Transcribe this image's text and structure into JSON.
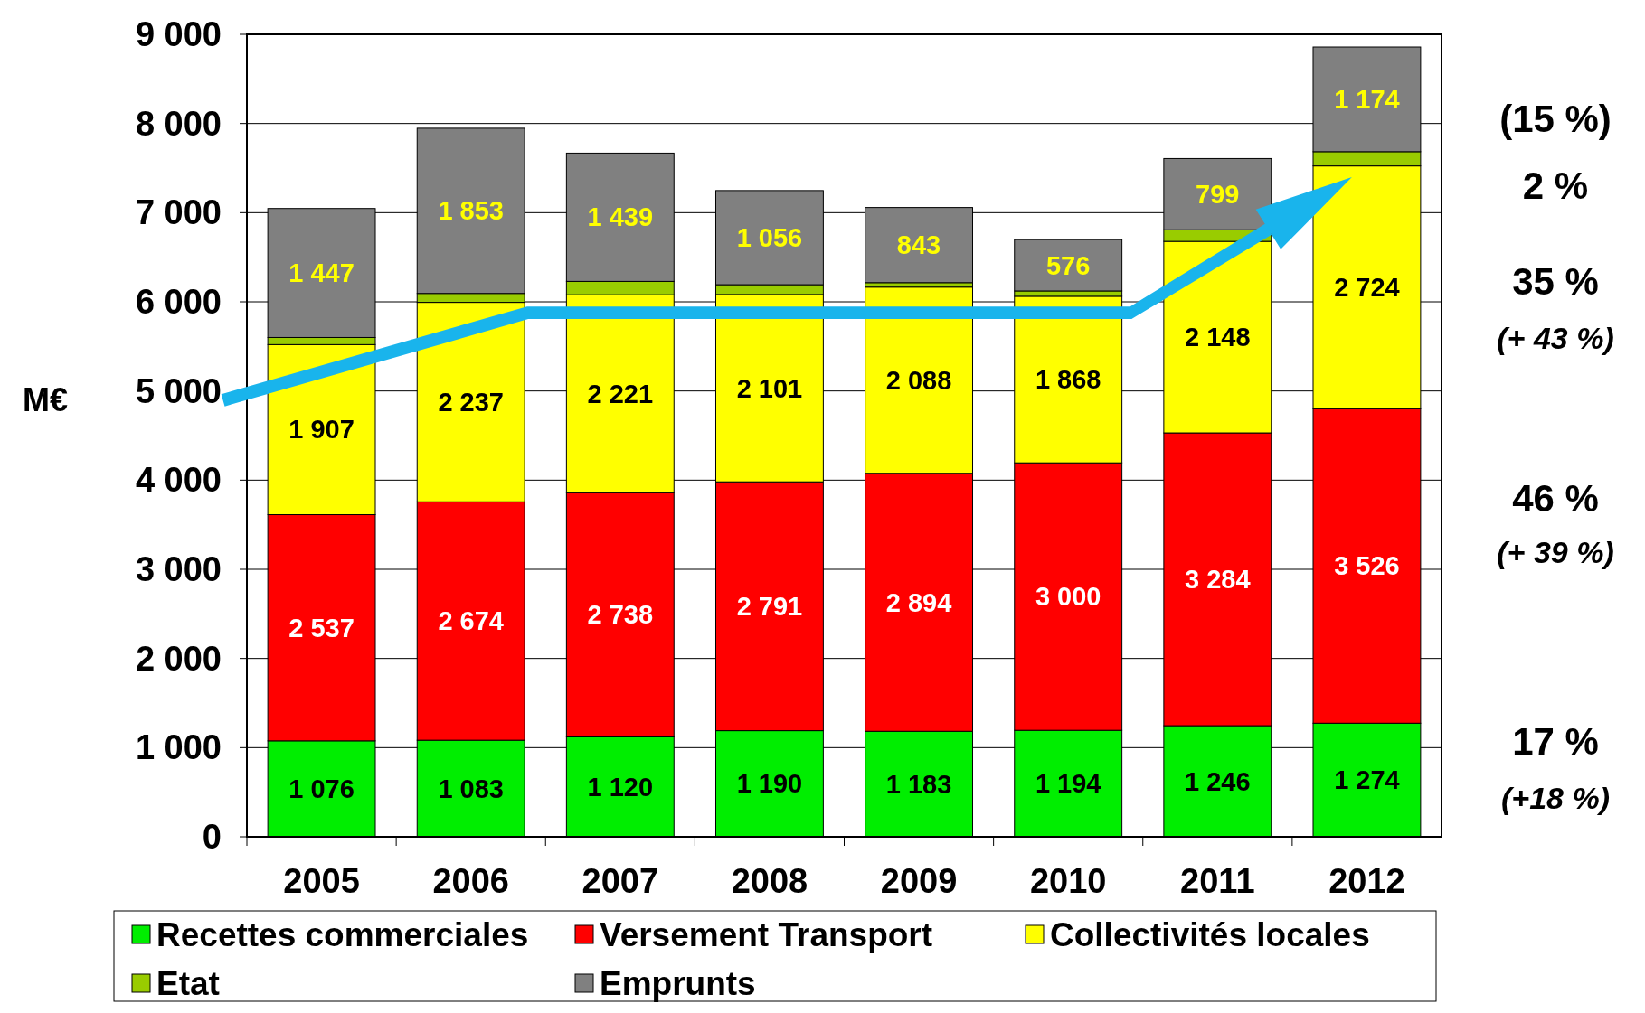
{
  "chart_data": {
    "type": "bar",
    "stacked": true,
    "ylabel": "M€",
    "categories": [
      "2005",
      "2006",
      "2007",
      "2008",
      "2009",
      "2010",
      "2011",
      "2012"
    ],
    "series": [
      {
        "name": "Recettes commerciales",
        "color": "#00ee00",
        "values": [
          1076,
          1083,
          1120,
          1190,
          1183,
          1194,
          1246,
          1274
        ],
        "value_labels": [
          "1 076",
          "1 083",
          "1 120",
          "1 190",
          "1 183",
          "1 194",
          "1 246",
          "1 274"
        ]
      },
      {
        "name": "Versement Transport",
        "color": "#ff0000",
        "values": [
          2537,
          2674,
          2738,
          2791,
          2894,
          3000,
          3284,
          3526
        ],
        "value_labels": [
          "2 537",
          "2 674",
          "2 738",
          "2 791",
          "2 894",
          "3 000",
          "3 284",
          "3 526"
        ]
      },
      {
        "name": "Collectivités locales",
        "color": "#ffff00",
        "values": [
          1907,
          2237,
          2221,
          2101,
          2088,
          1868,
          2148,
          2724
        ],
        "value_labels": [
          "1 907",
          "2 237",
          "2 221",
          "2 101",
          "2 088",
          "1 868",
          "2 148",
          "2 724"
        ]
      },
      {
        "name": "Etat",
        "color": "#99cc00",
        "values": [
          80,
          100,
          150,
          110,
          50,
          60,
          130,
          160
        ]
      },
      {
        "name": "Emprunts",
        "color": "#808080",
        "values": [
          1447,
          1853,
          1439,
          1056,
          843,
          576,
          799,
          1174
        ],
        "value_labels": [
          "1 447",
          "1 853",
          "1 439",
          "1 056",
          "843",
          "576",
          "799",
          "1 174"
        ]
      }
    ],
    "ylim": [
      0,
      9000
    ],
    "yticks": [
      0,
      {
        "value": 1000,
        "label": "1 000"
      },
      {
        "value": 2000,
        "label": "2 000"
      },
      {
        "value": 3000,
        "label": "3 000"
      },
      {
        "value": 4000,
        "label": "4 000"
      },
      {
        "value": 5000,
        "label": "5 000"
      },
      {
        "value": 6000,
        "label": "6 000"
      },
      {
        "value": 7000,
        "label": "7 000"
      },
      {
        "value": 8000,
        "label": "8 000"
      },
      {
        "value": 9000,
        "label": "9 000"
      }
    ],
    "grid": "y",
    "legend": "bottom",
    "annotations": [
      "(15 %)",
      "2 %",
      "35 %",
      "(+ 43 %)",
      "46 %",
      "(+ 39 %)",
      "17 %",
      "(+18 %)"
    ]
  }
}
